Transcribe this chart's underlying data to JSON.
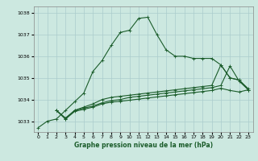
{
  "xlabel": "Graphe pression niveau de la mer (hPa)",
  "background_color": "#cce8e0",
  "grid_color": "#aacccc",
  "line_color_main": "#1a5c2a",
  "line_color_flat": "#1a5c2a",
  "xlim": [
    -0.5,
    23.5
  ],
  "ylim": [
    1032.5,
    1038.3
  ],
  "yticks": [
    1033,
    1034,
    1035,
    1036,
    1037,
    1038
  ],
  "xticks": [
    0,
    1,
    2,
    3,
    4,
    5,
    6,
    7,
    8,
    9,
    10,
    11,
    12,
    13,
    14,
    15,
    16,
    17,
    18,
    19,
    20,
    21,
    22,
    23
  ],
  "series1_x": [
    0,
    1,
    2,
    3,
    4,
    5,
    6,
    7,
    8,
    9,
    10,
    11,
    12,
    13,
    14,
    15,
    16,
    17,
    18,
    19,
    20,
    21,
    22,
    23
  ],
  "series1_y": [
    1032.7,
    1033.0,
    1033.1,
    1033.5,
    1033.9,
    1034.3,
    1035.3,
    1035.8,
    1036.5,
    1037.1,
    1037.2,
    1037.75,
    1037.8,
    1037.0,
    1036.3,
    1036.0,
    1036.0,
    1035.9,
    1035.9,
    1035.9,
    1035.6,
    1035.0,
    1034.9,
    1034.5
  ],
  "series2_x": [
    2,
    3,
    4,
    5,
    6,
    7,
    8,
    9,
    10,
    11,
    12,
    13,
    14,
    15,
    16,
    17,
    18,
    19,
    20,
    21,
    22,
    23
  ],
  "series2_y": [
    1033.5,
    1033.15,
    1033.5,
    1033.65,
    1033.8,
    1034.0,
    1034.1,
    1034.15,
    1034.2,
    1034.25,
    1034.3,
    1034.35,
    1034.4,
    1034.45,
    1034.5,
    1034.55,
    1034.6,
    1034.65,
    1035.6,
    1035.0,
    1034.9,
    1034.45
  ],
  "series3_x": [
    2,
    3,
    4,
    5,
    6,
    7,
    8,
    9,
    10,
    11,
    12,
    13,
    14,
    15,
    16,
    17,
    18,
    19,
    20,
    21,
    22,
    23
  ],
  "series3_y": [
    1033.5,
    1033.1,
    1033.5,
    1033.6,
    1033.7,
    1033.85,
    1033.95,
    1034.0,
    1034.1,
    1034.15,
    1034.2,
    1034.25,
    1034.3,
    1034.35,
    1034.4,
    1034.45,
    1034.5,
    1034.55,
    1034.65,
    1035.55,
    1034.85,
    1034.45
  ],
  "series4_x": [
    2,
    3,
    4,
    5,
    6,
    7,
    8,
    9,
    10,
    11,
    12,
    13,
    14,
    15,
    16,
    17,
    18,
    19,
    20,
    21,
    22,
    23
  ],
  "series4_y": [
    1033.5,
    1033.1,
    1033.45,
    1033.55,
    1033.65,
    1033.8,
    1033.88,
    1033.92,
    1033.97,
    1034.02,
    1034.07,
    1034.12,
    1034.17,
    1034.22,
    1034.27,
    1034.32,
    1034.37,
    1034.42,
    1034.52,
    1034.42,
    1034.35,
    1034.45
  ]
}
